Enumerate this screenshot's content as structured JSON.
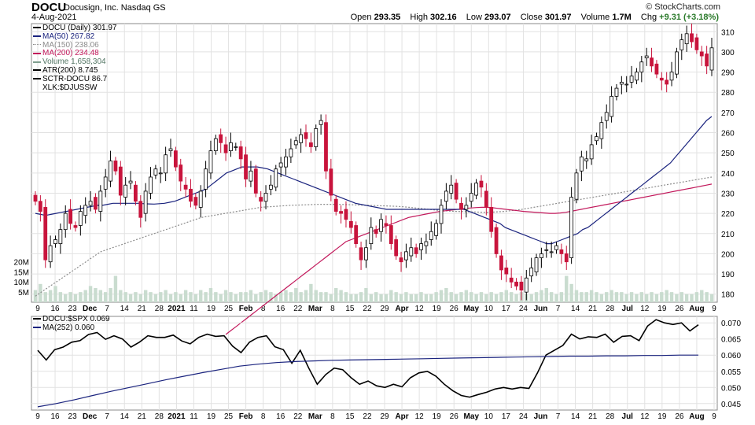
{
  "header": {
    "symbol": "DOCU",
    "company": "Docusign, Inc.",
    "exchange": "Nasdaq GS",
    "date": "4-Aug-2021",
    "credit": "© StockCharts.com",
    "open_label": "Open",
    "open": "293.35",
    "high_label": "High",
    "high": "302.16",
    "low_label": "Low",
    "low": "293.07",
    "close_label": "Close",
    "close": "301.97",
    "volume_label": "Volume",
    "volume": "1.7M",
    "chg_label": "Chg",
    "chg": "+9.31 (+3.18%)"
  },
  "legend_main": [
    {
      "text": "DOCU (Daily) 301.97",
      "color": "#000000",
      "icon": "candle-icon"
    },
    {
      "text": "MA(50) 267.82",
      "color": "#1a237e",
      "icon": "line-icon"
    },
    {
      "text": "MA(150) 238.06",
      "color": "#8c8c8c",
      "icon": "dotted-line-icon"
    },
    {
      "text": "MA(200) 234.48",
      "color": "#c2185b",
      "icon": "line-icon"
    },
    {
      "text": "Volume 1,658,304",
      "color": "#7f9f8f",
      "icon": "volume-icon"
    },
    {
      "text": "ATR(200) 8.745",
      "color": "#000000",
      "icon": "line-icon"
    },
    {
      "text": "SCTR-DOCU 86.7",
      "color": "#000000",
      "icon": "line-icon"
    },
    {
      "text": "XLK:$DJUSSW",
      "color": "#000000",
      "icon": "none"
    }
  ],
  "legend_lower": [
    {
      "text": "DOCU:$SPX 0.069",
      "color": "#000000"
    },
    {
      "text": "MA(252) 0.060",
      "color": "#1a237e"
    }
  ],
  "colors": {
    "up": "#000000",
    "down": "#c8143c",
    "ma50": "#1a237e",
    "ma150": "#8c8c8c",
    "ma200": "#c2185b",
    "volume": "#c9dccf",
    "grid": "#e2e2e2"
  },
  "chart_data": [
    {
      "type": "candlestick",
      "title": "DOCU Docusign, Inc. Nasdaq GS",
      "ylim": [
        176,
        314
      ],
      "yticks": [
        180,
        190,
        200,
        210,
        220,
        230,
        240,
        250,
        260,
        270,
        280,
        290,
        300,
        310
      ],
      "volume_ticks": [
        {
          "label": "5M",
          "value": 5
        },
        {
          "label": "10M",
          "value": 10
        },
        {
          "label": "15M",
          "value": 15
        },
        {
          "label": "20M",
          "value": 20
        }
      ],
      "volume_max": 33,
      "x_tick_labels": [
        "9",
        "16",
        "23",
        "Dec",
        "7",
        "14",
        "21",
        "28",
        "2021",
        "11",
        "19",
        "25",
        "Feb",
        "8",
        "16",
        "22",
        "Mar",
        "8",
        "15",
        "22",
        "29",
        "Apr",
        "12",
        "19",
        "26",
        "May",
        "10",
        "17",
        "24",
        "Jun",
        "7",
        "14",
        "21",
        "28",
        "Jul",
        "12",
        "19",
        "26",
        "Aug",
        "9"
      ],
      "bold_ticks": [
        "Dec",
        "2021",
        "Feb",
        "Mar",
        "Apr",
        "May",
        "Jun",
        "Jul",
        "Aug"
      ],
      "close": [
        226,
        221,
        197,
        204,
        207,
        212,
        220,
        215,
        213,
        221,
        224,
        226,
        222,
        231,
        238,
        246,
        241,
        229,
        234,
        236,
        226,
        218,
        231,
        238,
        242,
        240,
        249,
        252,
        243,
        236,
        232,
        226,
        224,
        231,
        242,
        251,
        257,
        255,
        250,
        255,
        253,
        247,
        237,
        241,
        230,
        226,
        230,
        234,
        242,
        245,
        248,
        252,
        256,
        259,
        257,
        253,
        262,
        266,
        241,
        229,
        221,
        220,
        217,
        213,
        205,
        197,
        203,
        213,
        210,
        217,
        214,
        205,
        199,
        196,
        201,
        203,
        200,
        205,
        206,
        211,
        215,
        224,
        231,
        234,
        227,
        222,
        224,
        230,
        235,
        233,
        223,
        211,
        200,
        192,
        190,
        186,
        184,
        182,
        188,
        193,
        198,
        200,
        202,
        201,
        204,
        200,
        196,
        228,
        240,
        248,
        247,
        254,
        258,
        265,
        270,
        278,
        282,
        285,
        284,
        288,
        290,
        295,
        298,
        293,
        289,
        286,
        284,
        290,
        300,
        306,
        309,
        305,
        301,
        298,
        293,
        302
      ],
      "ma50": [
        220,
        219.5,
        219,
        219.5,
        220,
        220.5,
        221,
        221.5,
        222,
        222.5,
        223,
        223.5,
        224,
        224,
        224.5,
        225,
        225,
        225,
        225,
        225,
        225,
        224.8,
        224.7,
        224.6,
        224.8,
        225,
        225.5,
        226,
        227,
        228,
        229,
        230,
        231,
        232,
        234,
        236,
        238,
        240,
        241,
        242,
        243,
        243,
        243,
        243,
        242.5,
        242,
        241,
        240,
        239,
        238,
        237,
        236,
        235,
        234,
        233,
        232,
        231,
        230,
        229,
        228,
        227,
        226,
        225,
        224.5,
        224,
        223.5,
        223,
        222.5,
        222,
        222,
        222,
        222,
        222,
        222,
        222,
        222,
        222,
        222,
        222,
        222,
        222,
        222,
        222,
        222,
        221,
        220,
        219,
        218,
        217,
        216,
        215,
        213,
        212,
        211,
        210,
        209,
        208,
        207,
        206,
        205,
        205,
        206,
        207,
        208,
        209,
        210,
        212,
        213,
        215,
        217,
        219,
        221,
        223,
        225,
        227,
        229,
        231,
        233,
        235,
        237,
        239,
        241,
        243,
        245,
        248,
        251,
        254,
        257,
        260,
        263,
        266,
        268
      ],
      "ma150": [
        179,
        181,
        183,
        185,
        187,
        189,
        191,
        193,
        195,
        197,
        199,
        201,
        202,
        203,
        204,
        205,
        206,
        207,
        208,
        209,
        210,
        211,
        212,
        213,
        214,
        215,
        216,
        217,
        218,
        218.5,
        219,
        219.5,
        220,
        220.5,
        221,
        221.5,
        222,
        222.5,
        223,
        223.2,
        223.4,
        223.6,
        223.8,
        224,
        224.1,
        224.2,
        224.3,
        224.4,
        224.5,
        224.5,
        224.5,
        224.5,
        224.4,
        224.3,
        224.2,
        224.1,
        224,
        223.9,
        223.8,
        223.7,
        223.6,
        223.5,
        223.3,
        223,
        222.7,
        222.4,
        222.1,
        221.8,
        221.5,
        221.3,
        221.1,
        221,
        220.9,
        220.8,
        220.7,
        220.6,
        220.5,
        220.6,
        220.8,
        221,
        221.3,
        221.6,
        222,
        222.5,
        223,
        223.5,
        224,
        224.5,
        225,
        225.5,
        226,
        226.5,
        227,
        227.5,
        228,
        228.5,
        229,
        229.5,
        230,
        230.5,
        231,
        231.5,
        232,
        232.5,
        233,
        233.5,
        234,
        234.5,
        235,
        235.5,
        236,
        236.5,
        237,
        237.5,
        238
      ],
      "ma200": [
        160,
        162,
        164,
        166,
        168,
        170,
        172,
        174,
        176,
        178,
        180,
        182,
        184,
        186,
        188,
        190,
        192,
        194,
        196,
        198,
        200,
        202,
        204,
        206,
        207,
        208,
        209,
        210,
        211,
        212,
        213,
        214,
        215,
        216,
        217,
        218,
        218.5,
        219,
        219.5,
        220,
        220.5,
        221,
        221.3,
        221.6,
        221.9,
        222.2,
        222.5,
        222.7,
        222.9,
        223,
        223,
        222.8,
        222.5,
        222.2,
        221.9,
        221.6,
        221.3,
        221,
        220.8,
        220.6,
        220.4,
        220.2,
        220,
        220,
        220.2,
        220.5,
        221,
        221.5,
        222,
        222.5,
        223,
        223.5,
        224,
        224.5,
        225,
        225.5,
        226,
        226.5,
        227,
        227.5,
        228,
        228.5,
        229,
        229.5,
        230,
        230.5,
        231,
        231.5,
        232,
        232.5,
        233,
        233.5,
        234,
        234.5
      ],
      "volume": [
        6,
        9,
        5,
        6,
        8,
        5,
        4,
        5,
        4,
        5,
        6,
        8,
        7,
        6,
        5,
        7,
        13,
        6,
        5,
        4,
        5,
        4,
        6,
        5,
        4,
        5,
        6,
        4,
        5,
        4,
        6,
        5,
        4,
        6,
        5,
        7,
        5,
        4,
        6,
        5,
        4,
        5,
        5,
        6,
        4,
        5,
        6,
        5,
        4,
        5,
        6,
        5,
        7,
        5,
        6,
        9,
        6,
        5,
        5,
        4,
        7,
        6,
        5,
        4,
        4,
        5,
        7,
        4,
        5,
        4,
        4,
        6,
        5,
        4,
        5,
        4,
        4,
        5,
        4,
        4,
        5,
        6,
        7,
        5,
        4,
        5,
        6,
        5,
        4,
        5,
        4,
        5,
        4,
        5,
        6,
        5,
        4,
        5,
        4,
        4,
        5,
        6,
        7,
        5,
        4,
        5,
        13,
        9,
        6,
        5,
        5,
        6,
        5,
        4,
        5,
        6,
        5,
        5,
        4,
        5,
        4,
        5,
        4,
        5,
        4,
        5,
        6,
        5,
        4,
        5,
        4,
        4,
        5,
        6,
        5,
        4
      ]
    },
    {
      "type": "line",
      "title": "DOCU:$SPX",
      "ylim": [
        0.043,
        0.072
      ],
      "yticks": [
        0.045,
        0.05,
        0.055,
        0.06,
        0.065,
        0.07
      ],
      "series": [
        {
          "name": "DOCU:$SPX",
          "values": [
            0.0615,
            0.0585,
            0.0617,
            0.0625,
            0.064,
            0.0645,
            0.0664,
            0.067,
            0.0649,
            0.066,
            0.065,
            0.0625,
            0.064,
            0.066,
            0.0655,
            0.0655,
            0.0662,
            0.0644,
            0.0635,
            0.0655,
            0.0665,
            0.0658,
            0.066,
            0.0628,
            0.0608,
            0.064,
            0.0655,
            0.066,
            0.0626,
            0.0617,
            0.0575,
            0.0615,
            0.056,
            0.051,
            0.054,
            0.056,
            0.0555,
            0.053,
            0.051,
            0.052,
            0.0505,
            0.05,
            0.051,
            0.0502,
            0.053,
            0.0545,
            0.055,
            0.0535,
            0.051,
            0.049,
            0.0475,
            0.047,
            0.0478,
            0.0485,
            0.0495,
            0.05,
            0.0495,
            0.05,
            0.0497,
            0.0545,
            0.06,
            0.0615,
            0.063,
            0.0665,
            0.065,
            0.0657,
            0.0655,
            0.0665,
            0.064,
            0.0658,
            0.066,
            0.0645,
            0.069,
            0.071,
            0.07,
            0.0695,
            0.07,
            0.0675,
            0.0694
          ]
        },
        {
          "name": "MA(252)",
          "values": [
            0.044,
            0.045,
            0.0462,
            0.0475,
            0.0488,
            0.05,
            0.0512,
            0.0524,
            0.0535,
            0.0546,
            0.0556,
            0.0566,
            0.0572,
            0.0577,
            0.058,
            0.0582,
            0.0584,
            0.0585,
            0.0586,
            0.0587,
            0.0588,
            0.0589,
            0.059,
            0.0591,
            0.0592,
            0.0593,
            0.0594,
            0.0595,
            0.0596,
            0.0597,
            0.0597,
            0.0598,
            0.0598,
            0.0599,
            0.0599,
            0.06,
            0.06
          ]
        }
      ]
    }
  ]
}
